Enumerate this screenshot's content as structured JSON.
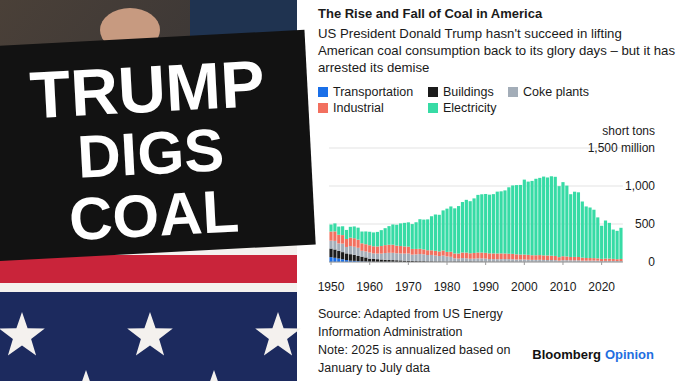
{
  "photo": {
    "sign_lines": [
      "TRUMP",
      "DIGS",
      "COAL"
    ]
  },
  "chart_data": {
    "type": "bar",
    "stacked": true,
    "title": "The Rise and Fall of Coal in America",
    "subtitle": "US President Donald Trump hasn't succeed in lifting American coal consumption back to its glory days – but it has arrested its demise",
    "ylabel": "short tons",
    "source": "Source: Adapted from US Energy Information Administration",
    "note": "Note: 2025 is annualized based on January to July data",
    "credit": [
      "Bloomberg",
      "Opinion"
    ],
    "grid": true,
    "legend": "top-left",
    "x": [
      1950,
      1951,
      1952,
      1953,
      1954,
      1955,
      1956,
      1957,
      1958,
      1959,
      1960,
      1961,
      1962,
      1963,
      1964,
      1965,
      1966,
      1967,
      1968,
      1969,
      1970,
      1971,
      1972,
      1973,
      1974,
      1975,
      1976,
      1977,
      1978,
      1979,
      1980,
      1981,
      1982,
      1983,
      1984,
      1985,
      1986,
      1987,
      1988,
      1989,
      1990,
      1991,
      1992,
      1993,
      1994,
      1995,
      1996,
      1997,
      1998,
      1999,
      2000,
      2001,
      2002,
      2003,
      2004,
      2005,
      2006,
      2007,
      2008,
      2009,
      2010,
      2011,
      2012,
      2013,
      2014,
      2015,
      2016,
      2017,
      2018,
      2019,
      2020,
      2021,
      2022,
      2023,
      2024,
      2025
    ],
    "xlim": [
      1949.5,
      2025.5
    ],
    "xticks": [
      1950,
      1960,
      1970,
      1980,
      1990,
      2000,
      2010,
      2020
    ],
    "ylim": [
      0,
      1500
    ],
    "yticks": [
      0,
      500,
      {
        "value": 1000,
        "label": "1,000"
      },
      {
        "value": 1500,
        "label": "1,500 million"
      }
    ],
    "series": [
      {
        "name": "Transportation",
        "color": "#1a6fe8",
        "values": [
          63,
          55,
          46,
          36,
          25,
          17,
          15,
          11,
          6,
          5,
          3,
          2,
          1,
          1,
          1,
          1,
          1,
          1,
          1,
          0,
          0,
          0,
          0,
          0,
          0,
          0,
          0,
          0,
          0,
          0,
          0,
          0,
          0,
          0,
          0,
          0,
          0,
          0,
          0,
          0,
          0,
          0,
          0,
          0,
          0,
          0,
          0,
          0,
          0,
          0,
          0,
          0,
          0,
          0,
          0,
          0,
          0,
          0,
          0,
          0,
          0,
          0,
          0,
          0,
          0,
          0,
          0,
          0,
          0,
          0,
          0,
          0,
          0,
          0,
          0,
          0
        ]
      },
      {
        "name": "Buildings",
        "color": "#1b1b1b",
        "values": [
          114,
          110,
          100,
          94,
          88,
          86,
          80,
          68,
          65,
          55,
          41,
          38,
          36,
          32,
          28,
          25,
          24,
          22,
          20,
          18,
          16,
          14,
          12,
          11,
          11,
          9,
          9,
          8,
          8,
          7,
          6,
          7,
          8,
          8,
          8,
          8,
          8,
          7,
          7,
          7,
          6,
          6,
          6,
          6,
          6,
          6,
          6,
          6,
          5,
          5,
          4,
          4,
          4,
          4,
          5,
          4,
          3,
          3,
          3,
          3,
          3,
          3,
          2,
          2,
          2,
          2,
          2,
          2,
          1,
          1,
          1,
          1,
          1,
          1,
          1,
          1
        ]
      },
      {
        "name": "Coke plants",
        "color": "#a3adb8",
        "values": [
          104,
          113,
          98,
          112,
          85,
          107,
          106,
          108,
          77,
          79,
          81,
          74,
          74,
          78,
          89,
          95,
          96,
          92,
          91,
          93,
          96,
          83,
          88,
          94,
          90,
          83,
          84,
          77,
          71,
          77,
          67,
          61,
          41,
          37,
          44,
          41,
          35,
          37,
          41,
          41,
          39,
          33,
          32,
          31,
          32,
          33,
          32,
          30,
          28,
          28,
          29,
          26,
          24,
          24,
          24,
          23,
          23,
          23,
          22,
          15,
          21,
          21,
          21,
          21,
          20,
          16,
          16,
          16,
          18,
          17,
          11,
          14,
          14,
          13,
          12,
          11
        ]
      },
      {
        "name": "Industrial",
        "color": "#f2705f",
        "values": [
          120,
          125,
          115,
          112,
          105,
          110,
          112,
          107,
          98,
          95,
          96,
          93,
          94,
          99,
          104,
          106,
          107,
          100,
          98,
          94,
          90,
          75,
          72,
          69,
          65,
          63,
          61,
          62,
          60,
          68,
          60,
          67,
          63,
          66,
          73,
          75,
          72,
          75,
          77,
          76,
          76,
          75,
          75,
          75,
          75,
          73,
          71,
          71,
          68,
          65,
          65,
          64,
          61,
          61,
          62,
          60,
          60,
          57,
          55,
          46,
          52,
          49,
          43,
          44,
          44,
          39,
          35,
          34,
          32,
          30,
          29,
          30,
          30,
          27,
          24,
          28
        ]
      },
      {
        "name": "Electricity",
        "color": "#37dba5",
        "values": [
          92,
          105,
          107,
          116,
          119,
          143,
          155,
          158,
          155,
          168,
          177,
          182,
          191,
          209,
          223,
          245,
          266,
          275,
          298,
          310,
          320,
          327,
          351,
          389,
          392,
          406,
          448,
          478,
          482,
          527,
          569,
          596,
          594,
          625,
          664,
          694,
          685,
          718,
          758,
          767,
          774,
          772,
          780,
          814,
          817,
          830,
          874,
          900,
          911,
          916,
          986,
          964,
          978,
          1006,
          1016,
          1037,
          1026,
          1045,
          1041,
          934,
          975,
          932,
          826,
          858,
          851,
          739,
          678,
          665,
          637,
          539,
          436,
          501,
          470,
          386,
          373,
          410
        ]
      }
    ]
  }
}
